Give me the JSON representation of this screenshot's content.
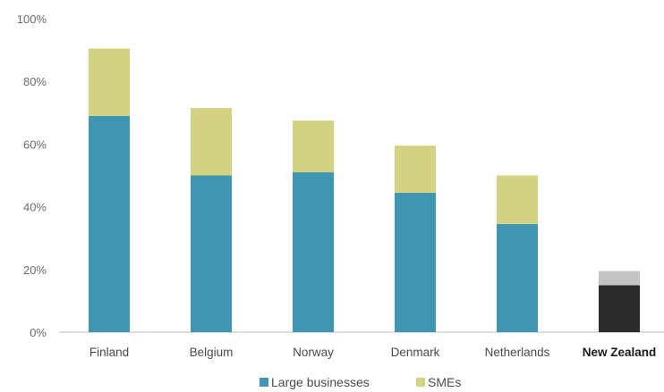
{
  "chart_data": {
    "type": "bar",
    "stacked": true,
    "categories": [
      "Finland",
      "Belgium",
      "Norway",
      "Denmark",
      "Netherlands",
      "New Zealand"
    ],
    "highlight_category": "New Zealand",
    "series": [
      {
        "name": "Large businesses",
        "values": [
          69,
          50,
          51,
          44.5,
          34.5,
          15
        ],
        "color": "#3f96b2",
        "highlight_color": "#2b2b2b"
      },
      {
        "name": "SMEs",
        "values": [
          21.5,
          21.5,
          16.5,
          15,
          15.5,
          4.5
        ],
        "color": "#d3d281",
        "highlight_color": "#c4c4c4"
      }
    ],
    "yticks": [
      "0%",
      "20%",
      "40%",
      "60%",
      "80%",
      "100%"
    ],
    "ylim": [
      0,
      100
    ],
    "title": "",
    "xlabel": "",
    "ylabel": "",
    "grid": false,
    "legend": {
      "position": "bottom-center",
      "items": [
        {
          "label": "Large businesses",
          "color": "#3f96b2"
        },
        {
          "label": "SMEs",
          "color": "#d3d281"
        }
      ]
    }
  }
}
